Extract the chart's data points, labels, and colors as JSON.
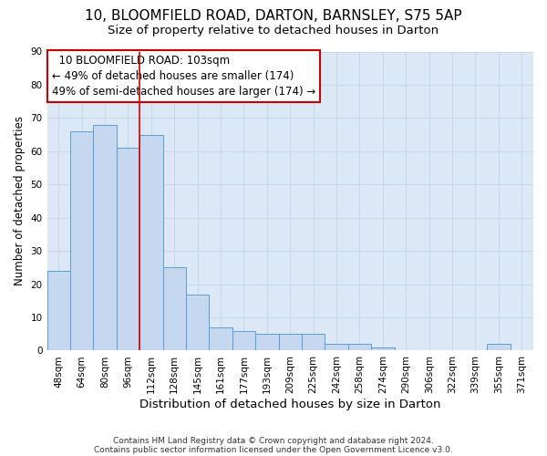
{
  "title": "10, BLOOMFIELD ROAD, DARTON, BARNSLEY, S75 5AP",
  "subtitle": "Size of property relative to detached houses in Darton",
  "xlabel": "Distribution of detached houses by size in Darton",
  "ylabel": "Number of detached properties",
  "footnote1": "Contains HM Land Registry data © Crown copyright and database right 2024.",
  "footnote2": "Contains public sector information licensed under the Open Government Licence v3.0.",
  "bar_labels": [
    "48sqm",
    "64sqm",
    "80sqm",
    "96sqm",
    "112sqm",
    "128sqm",
    "145sqm",
    "161sqm",
    "177sqm",
    "193sqm",
    "209sqm",
    "225sqm",
    "242sqm",
    "258sqm",
    "274sqm",
    "290sqm",
    "306sqm",
    "322sqm",
    "339sqm",
    "355sqm",
    "371sqm"
  ],
  "bar_values": [
    24,
    66,
    68,
    61,
    65,
    25,
    17,
    7,
    6,
    5,
    5,
    5,
    2,
    2,
    1,
    0,
    0,
    0,
    0,
    2,
    0
  ],
  "bar_color": "#c5d8ef",
  "bar_edge_color": "#5a9fd4",
  "ylim": [
    0,
    90
  ],
  "yticks": [
    0,
    10,
    20,
    30,
    40,
    50,
    60,
    70,
    80,
    90
  ],
  "vline_x": 3.5,
  "vline_color": "#cc0000",
  "annotation_line1": "10 BLOOMFIELD ROAD: 103sqm",
  "annotation_line2": "← 49% of detached houses are smaller (174)",
  "annotation_line3": "49% of semi-detached houses are larger (174) →",
  "box_edge_color": "#cc0000",
  "grid_color": "#c8d8ea",
  "background_color": "#dce8f5",
  "title_fontsize": 11,
  "subtitle_fontsize": 9.5,
  "xlabel_fontsize": 9.5,
  "ylabel_fontsize": 8.5,
  "tick_fontsize": 7.5,
  "annotation_fontsize": 8.5,
  "footnote_fontsize": 6.5
}
